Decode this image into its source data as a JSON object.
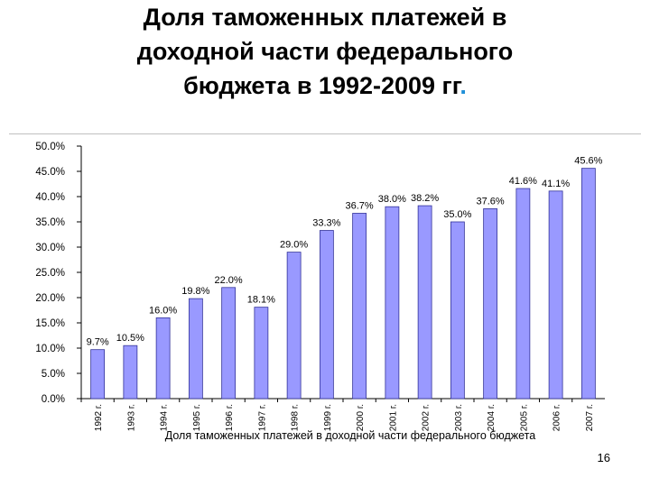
{
  "slide": {
    "title_lines": [
      "Доля таможенных платежей в",
      "доходной части федерального",
      "бюджета в 1992-2009 гг"
    ],
    "title_dot": ".",
    "page_number": "16"
  },
  "chart_data": {
    "type": "bar",
    "title": "",
    "xlabel": "Доля таможенных платежей в доходной части федерального бюджета",
    "ylabel": "",
    "ylim": [
      0,
      50
    ],
    "yticks": [
      "0.0%",
      "5.0%",
      "10.0%",
      "15.0%",
      "20.0%",
      "25.0%",
      "30.0%",
      "35.0%",
      "40.0%",
      "45.0%",
      "50.0%"
    ],
    "grid": false,
    "legend": "none",
    "bar_color": "#9999ff",
    "bar_border": "#333399",
    "categories": [
      "1992 г.",
      "1993 г.",
      "1994 г.",
      "1995 г.",
      "1996 г.",
      "1997 г.",
      "1998 г.",
      "1999 г.",
      "2000 г.",
      "2001 г.",
      "2002 г.",
      "2003 г.",
      "2004 г.",
      "2005 г.",
      "2006 г.",
      "2007 г."
    ],
    "values": [
      9.7,
      10.5,
      16.0,
      19.8,
      22.0,
      18.1,
      29.0,
      33.3,
      36.7,
      38.0,
      38.2,
      35.0,
      37.6,
      41.6,
      41.1,
      45.6
    ],
    "data_labels": [
      "9.7%",
      "10.5%",
      "16.0%",
      "19.8%",
      "22.0%",
      "18.1%",
      "29.0%",
      "33.3%",
      "36.7%",
      "38.0%",
      "38.2%",
      "35.0%",
      "37.6%",
      "41.6%",
      "41.1%",
      "45.6%"
    ]
  }
}
